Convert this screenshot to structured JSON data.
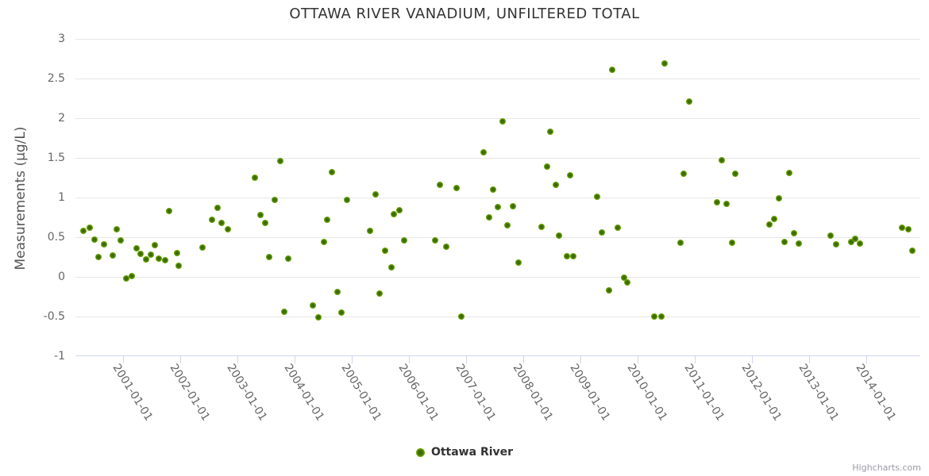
{
  "title": "OTTAWA RIVER VANADIUM, UNFILTERED TOTAL",
  "legend": {
    "series_label": "Ottawa River"
  },
  "credit": "Highcharts.com",
  "colors": {
    "marker_outer": "#74b203",
    "marker_inner": "#3d6b00",
    "grid": "#e6e6e6",
    "axis_line": "#ccd6eb",
    "axis_label": "#666666",
    "title": "#333333",
    "credit": "#999aa5"
  },
  "chart_data": {
    "type": "scatter",
    "title": "OTTAWA RIVER VANADIUM, UNFILTERED TOTAL",
    "xlabel": "",
    "ylabel": "Measurements (µg/L)",
    "ylim": [
      -1,
      3
    ],
    "y_ticks": [
      3,
      2.5,
      2,
      1.5,
      1,
      0.5,
      0,
      -0.5,
      -1
    ],
    "xlim_decimal_years": [
      2000.17,
      2014.96
    ],
    "x_tick_labels": [
      "2001-01-01",
      "2002-01-01",
      "2003-01-01",
      "2004-01-01",
      "2005-01-01",
      "2006-01-01",
      "2007-01-01",
      "2008-01-01",
      "2009-01-01",
      "2010-01-01",
      "2011-01-01",
      "2012-01-01",
      "2013-01-01",
      "2014-01-01"
    ],
    "grid": "horizontal-only",
    "legend_position": "bottom-center",
    "series": [
      {
        "name": "Ottawa River",
        "points_format": "[decimal_year, micrograms_per_litre]",
        "points": [
          [
            2000.3,
            0.58
          ],
          [
            2000.42,
            0.62
          ],
          [
            2000.5,
            0.47
          ],
          [
            2000.57,
            0.25
          ],
          [
            2000.67,
            0.41
          ],
          [
            2000.82,
            0.27
          ],
          [
            2000.89,
            0.6
          ],
          [
            2000.96,
            0.46
          ],
          [
            2001.06,
            -0.02
          ],
          [
            2001.15,
            0.01
          ],
          [
            2001.23,
            0.36
          ],
          [
            2001.31,
            0.29
          ],
          [
            2001.4,
            0.22
          ],
          [
            2001.48,
            0.28
          ],
          [
            2001.56,
            0.4
          ],
          [
            2001.63,
            0.23
          ],
          [
            2001.73,
            0.21
          ],
          [
            2001.81,
            0.83
          ],
          [
            2001.94,
            0.3
          ],
          [
            2001.97,
            0.14
          ],
          [
            2002.39,
            0.37
          ],
          [
            2002.55,
            0.72
          ],
          [
            2002.65,
            0.87
          ],
          [
            2002.72,
            0.68
          ],
          [
            2002.83,
            0.6
          ],
          [
            2003.31,
            1.25
          ],
          [
            2003.4,
            0.78
          ],
          [
            2003.48,
            0.68
          ],
          [
            2003.56,
            0.25
          ],
          [
            2003.65,
            0.97
          ],
          [
            2003.75,
            1.46
          ],
          [
            2003.82,
            -0.44
          ],
          [
            2003.89,
            0.23
          ],
          [
            2004.32,
            -0.36
          ],
          [
            2004.42,
            -0.51
          ],
          [
            2004.52,
            0.44
          ],
          [
            2004.57,
            0.72
          ],
          [
            2004.65,
            1.32
          ],
          [
            2004.75,
            -0.19
          ],
          [
            2004.82,
            -0.45
          ],
          [
            2004.92,
            0.97
          ],
          [
            2005.32,
            0.58
          ],
          [
            2005.42,
            1.04
          ],
          [
            2005.48,
            -0.21
          ],
          [
            2005.58,
            0.33
          ],
          [
            2005.69,
            0.12
          ],
          [
            2005.74,
            0.79
          ],
          [
            2005.83,
            0.84
          ],
          [
            2005.91,
            0.46
          ],
          [
            2006.46,
            0.46
          ],
          [
            2006.54,
            1.16
          ],
          [
            2006.65,
            0.38
          ],
          [
            2006.84,
            1.12
          ],
          [
            2006.91,
            -0.5
          ],
          [
            2007.31,
            1.57
          ],
          [
            2007.4,
            0.75
          ],
          [
            2007.47,
            1.1
          ],
          [
            2007.56,
            0.88
          ],
          [
            2007.64,
            1.96
          ],
          [
            2007.72,
            0.65
          ],
          [
            2007.82,
            0.89
          ],
          [
            2007.91,
            0.18
          ],
          [
            2008.32,
            0.63
          ],
          [
            2008.41,
            1.39
          ],
          [
            2008.47,
            1.83
          ],
          [
            2008.57,
            1.16
          ],
          [
            2008.63,
            0.52
          ],
          [
            2008.76,
            0.26
          ],
          [
            2008.82,
            1.28
          ],
          [
            2008.88,
            0.26
          ],
          [
            2009.29,
            1.01
          ],
          [
            2009.38,
            0.56
          ],
          [
            2009.5,
            -0.17
          ],
          [
            2009.56,
            2.61
          ],
          [
            2009.65,
            0.62
          ],
          [
            2009.76,
            -0.01
          ],
          [
            2009.82,
            -0.07
          ],
          [
            2010.29,
            -0.5
          ],
          [
            2010.41,
            -0.5
          ],
          [
            2010.47,
            2.69
          ],
          [
            2010.75,
            0.43
          ],
          [
            2010.8,
            1.3
          ],
          [
            2010.9,
            2.21
          ],
          [
            2011.39,
            0.94
          ],
          [
            2011.47,
            1.47
          ],
          [
            2011.56,
            0.92
          ],
          [
            2011.65,
            0.43
          ],
          [
            2011.71,
            1.3
          ],
          [
            2012.31,
            0.66
          ],
          [
            2012.39,
            0.73
          ],
          [
            2012.47,
            0.99
          ],
          [
            2012.57,
            0.44
          ],
          [
            2012.65,
            1.31
          ],
          [
            2012.73,
            0.55
          ],
          [
            2012.82,
            0.42
          ],
          [
            2013.38,
            0.52
          ],
          [
            2013.47,
            0.41
          ],
          [
            2013.73,
            0.44
          ],
          [
            2013.8,
            0.48
          ],
          [
            2013.89,
            0.42
          ],
          [
            2014.63,
            0.62
          ],
          [
            2014.74,
            0.6
          ],
          [
            2014.8,
            0.33
          ]
        ]
      }
    ]
  }
}
